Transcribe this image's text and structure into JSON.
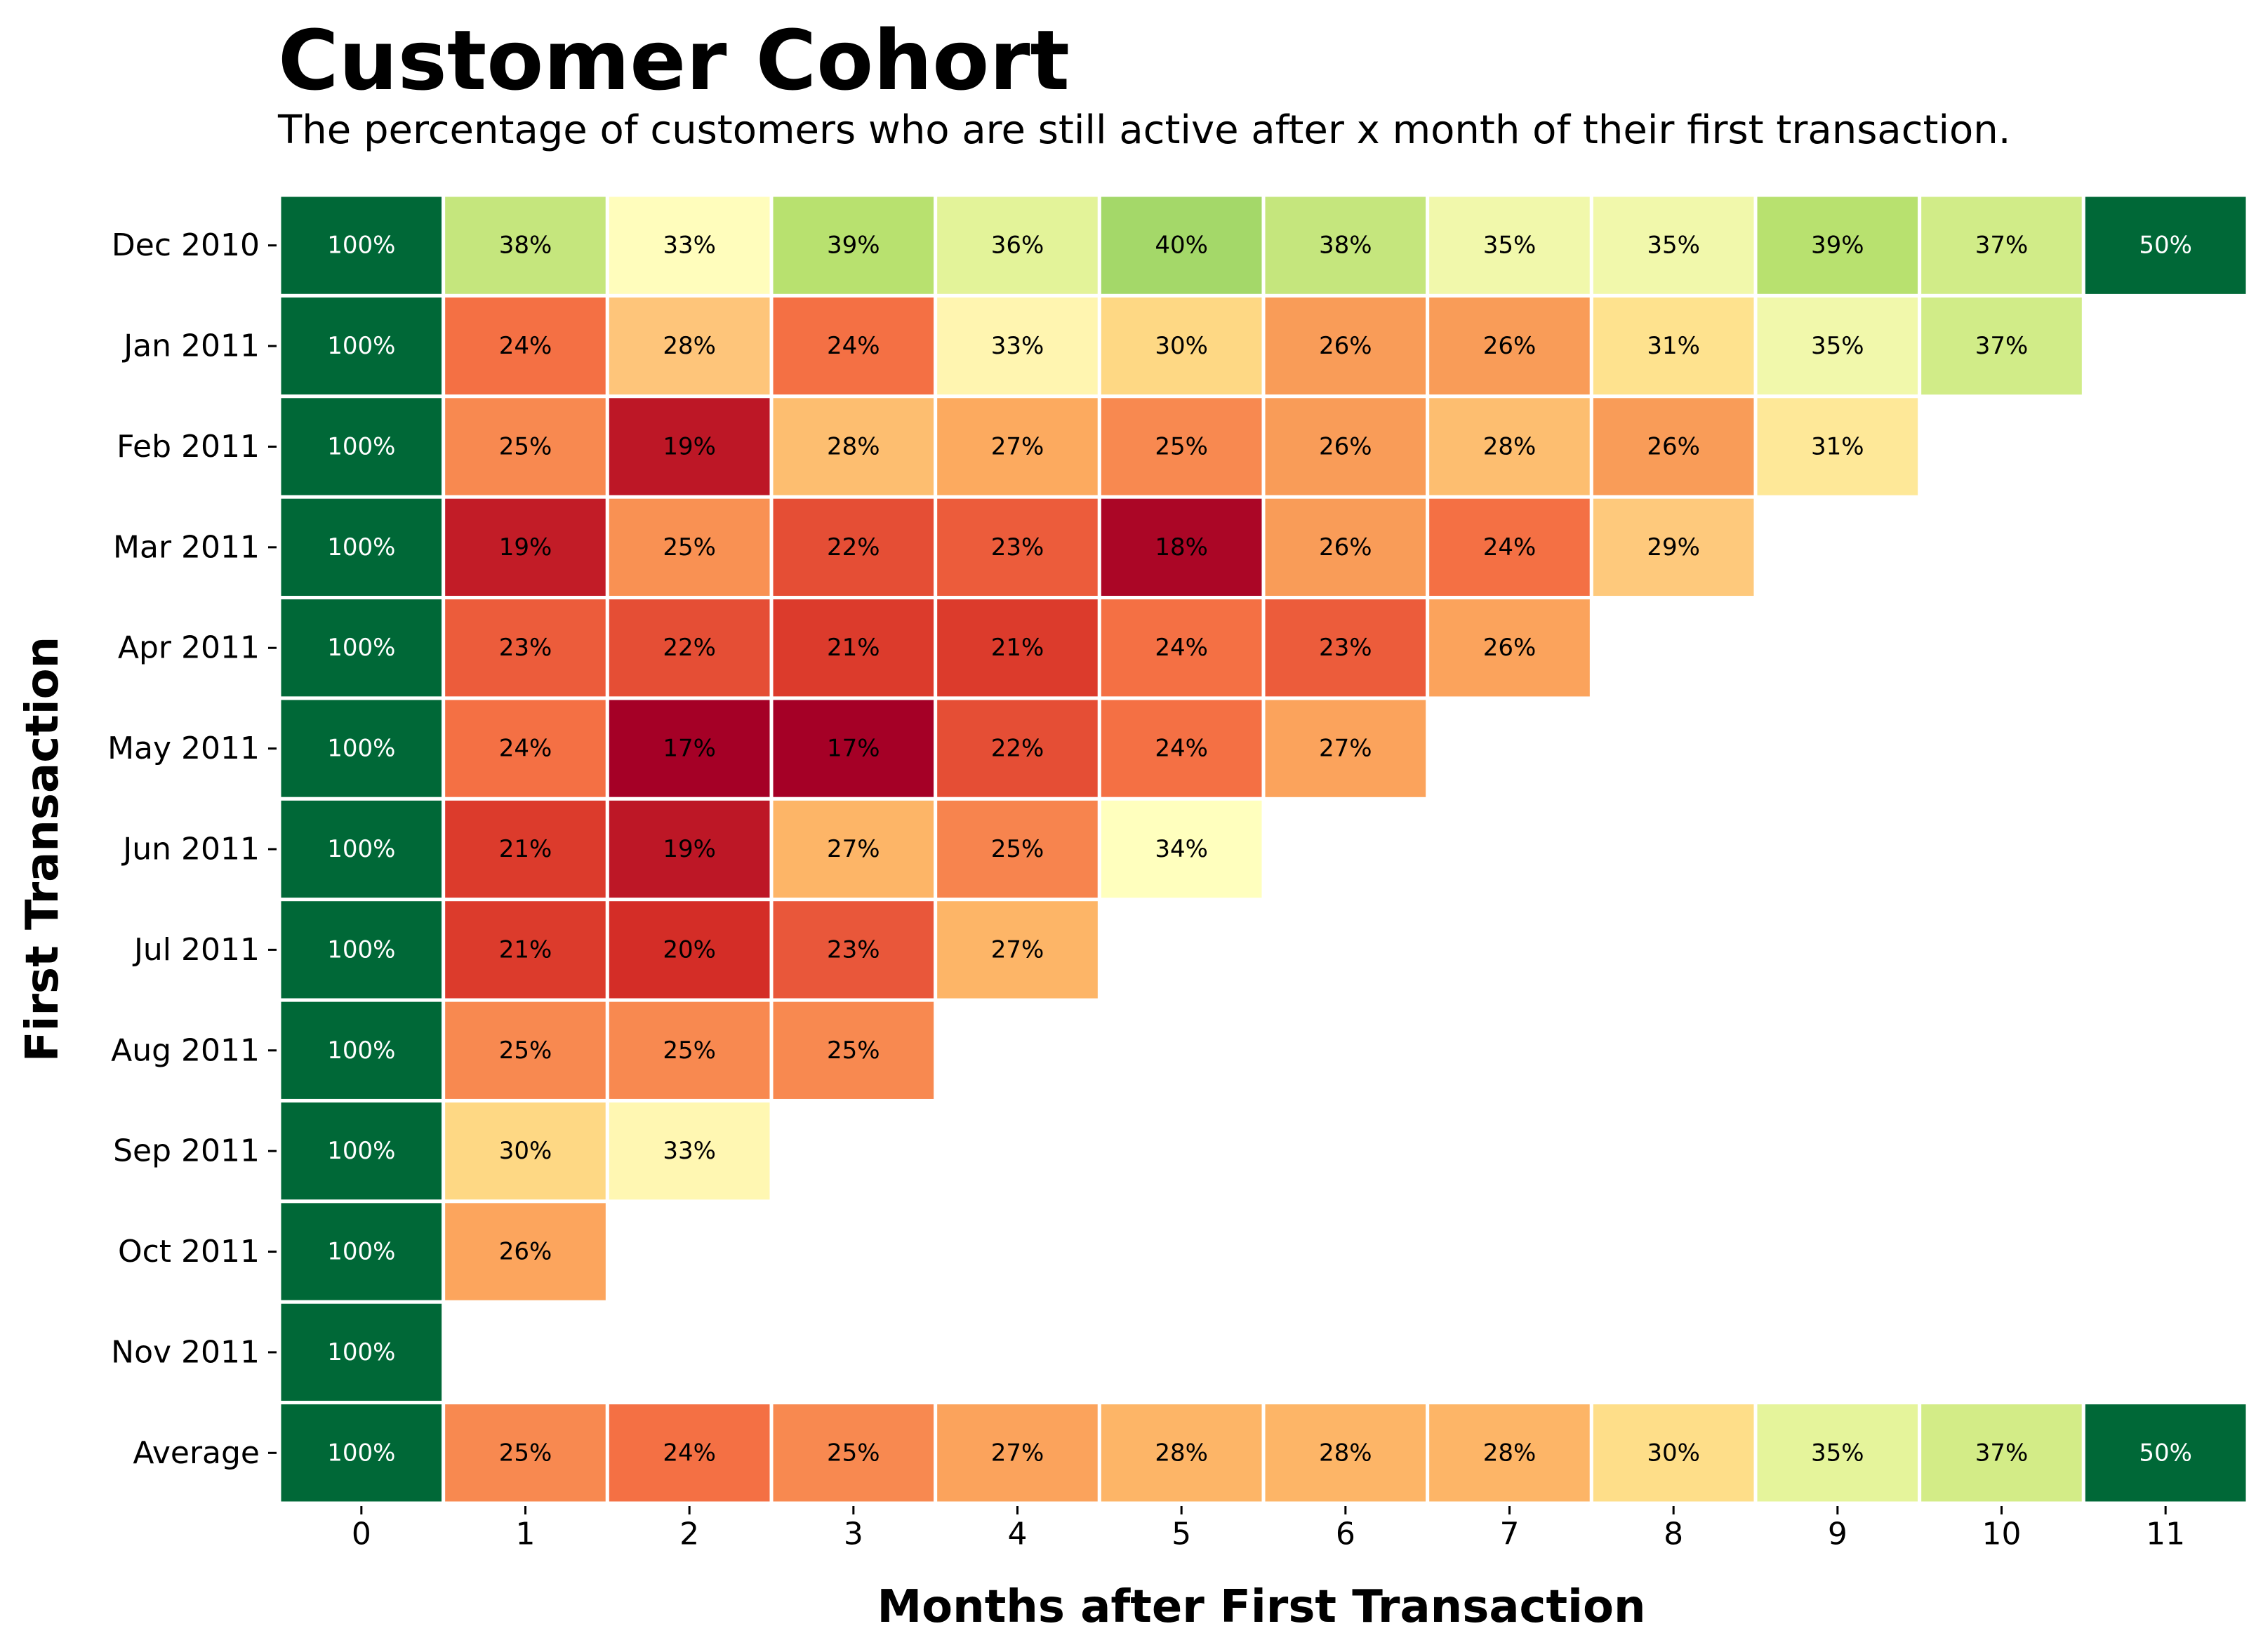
{
  "title": "Customer Cohort",
  "subtitle": "The percentage of customers who are still active after x month of their first transaction.",
  "chart_data": {
    "type": "heatmap",
    "title": "Customer Cohort",
    "subtitle": "The percentage of customers who are still active after x month of their first transaction.",
    "xlabel": "Months after First Transaction",
    "ylabel": "First Transaction",
    "colormap": "RdYlGn",
    "value_unit": "%",
    "x": [
      "0",
      "1",
      "2",
      "3",
      "4",
      "5",
      "6",
      "7",
      "8",
      "9",
      "10",
      "11"
    ],
    "y": [
      "Dec 2010",
      "Jan 2011",
      "Feb 2011",
      "Mar 2011",
      "Apr 2011",
      "May 2011",
      "Jun 2011",
      "Jul 2011",
      "Aug 2011",
      "Sep 2011",
      "Oct 2011",
      "Nov 2011",
      "Average"
    ],
    "values": [
      [
        100,
        38,
        33,
        39,
        36,
        40,
        38,
        35,
        35,
        39,
        37,
        50
      ],
      [
        100,
        24,
        28,
        24,
        33,
        30,
        26,
        26,
        31,
        35,
        37,
        null
      ],
      [
        100,
        25,
        19,
        28,
        27,
        25,
        26,
        28,
        26,
        31,
        null,
        null
      ],
      [
        100,
        19,
        25,
        22,
        23,
        18,
        26,
        24,
        29,
        null,
        null,
        null
      ],
      [
        100,
        23,
        22,
        21,
        21,
        24,
        23,
        26,
        null,
        null,
        null,
        null
      ],
      [
        100,
        24,
        17,
        17,
        22,
        24,
        27,
        null,
        null,
        null,
        null,
        null
      ],
      [
        100,
        21,
        19,
        27,
        25,
        34,
        null,
        null,
        null,
        null,
        null,
        null
      ],
      [
        100,
        21,
        20,
        23,
        27,
        null,
        null,
        null,
        null,
        null,
        null,
        null
      ],
      [
        100,
        25,
        25,
        25,
        null,
        null,
        null,
        null,
        null,
        null,
        null,
        null
      ],
      [
        100,
        30,
        33,
        null,
        null,
        null,
        null,
        null,
        null,
        null,
        null,
        null
      ],
      [
        100,
        26,
        null,
        null,
        null,
        null,
        null,
        null,
        null,
        null,
        null,
        null
      ],
      [
        100,
        null,
        null,
        null,
        null,
        null,
        null,
        null,
        null,
        null,
        null,
        null
      ],
      [
        100,
        25,
        24,
        25,
        27,
        28,
        28,
        28,
        30,
        35,
        37,
        50
      ]
    ],
    "cell_colors": [
      [
        "#006837",
        "#c5e67d",
        "#fffdbc",
        "#b8e16f",
        "#e3f399",
        "#a4d869",
        "#c5e67d",
        "#f1f8ab",
        "#f1f8ab",
        "#b8e16f",
        "#d1ec88",
        "#006837"
      ],
      [
        "#006837",
        "#f47044",
        "#fec57a",
        "#f47044",
        "#fff5b0",
        "#fed884",
        "#f99c58",
        "#f99c58",
        "#fee28e",
        "#f1f8ab",
        "#d1ec88",
        null
      ],
      [
        "#006837",
        "#f88950",
        "#bd1726",
        "#fdbe70",
        "#fcaa5f",
        "#f88950",
        "#f99c58",
        "#fdbe70",
        "#f99c58",
        "#fee898",
        null,
        null
      ],
      [
        "#006837",
        "#c21c27",
        "#f99153",
        "#e54e35",
        "#ec5c3b",
        "#ab0626",
        "#f99c58",
        "#f47044",
        "#fec97c",
        null,
        null,
        null
      ],
      [
        "#006837",
        "#ec5c3b",
        "#e54e35",
        "#dc3b2c",
        "#dc3b2c",
        "#f47044",
        "#ec5c3b",
        "#fba35c",
        null,
        null,
        null,
        null
      ],
      [
        "#006837",
        "#f47044",
        "#a50026",
        "#a50026",
        "#e54e35",
        "#f47044",
        "#fba35c",
        null,
        null,
        null,
        null,
        null
      ],
      [
        "#006837",
        "#dc3b2c",
        "#bd1726",
        "#fdb567",
        "#f7844e",
        "#ffffbe",
        null,
        null,
        null,
        null,
        null,
        null
      ],
      [
        "#006837",
        "#dc3b2c",
        "#d42d27",
        "#e9573a",
        "#fdb567",
        null,
        null,
        null,
        null,
        null,
        null,
        null
      ],
      [
        "#006837",
        "#f88950",
        "#f88950",
        "#f88950",
        null,
        null,
        null,
        null,
        null,
        null,
        null,
        null
      ],
      [
        "#006837",
        "#fed884",
        "#fff7b2",
        null,
        null,
        null,
        null,
        null,
        null,
        null,
        null,
        null
      ],
      [
        "#006837",
        "#fca55d",
        null,
        null,
        null,
        null,
        null,
        null,
        null,
        null,
        null,
        null
      ],
      [
        "#006837",
        null,
        null,
        null,
        null,
        null,
        null,
        null,
        null,
        null,
        null,
        null
      ],
      [
        "#006837",
        "#f88950",
        "#f47044",
        "#f88950",
        "#fba35c",
        "#fdb567",
        "#fdb567",
        "#fdb567",
        "#fede89",
        "#e5f49b",
        "#d3ec87",
        "#006837"
      ]
    ],
    "dark_text_color": "#000000",
    "light_text_color": "#ffffff",
    "grid_line_color": "#ffffff"
  }
}
